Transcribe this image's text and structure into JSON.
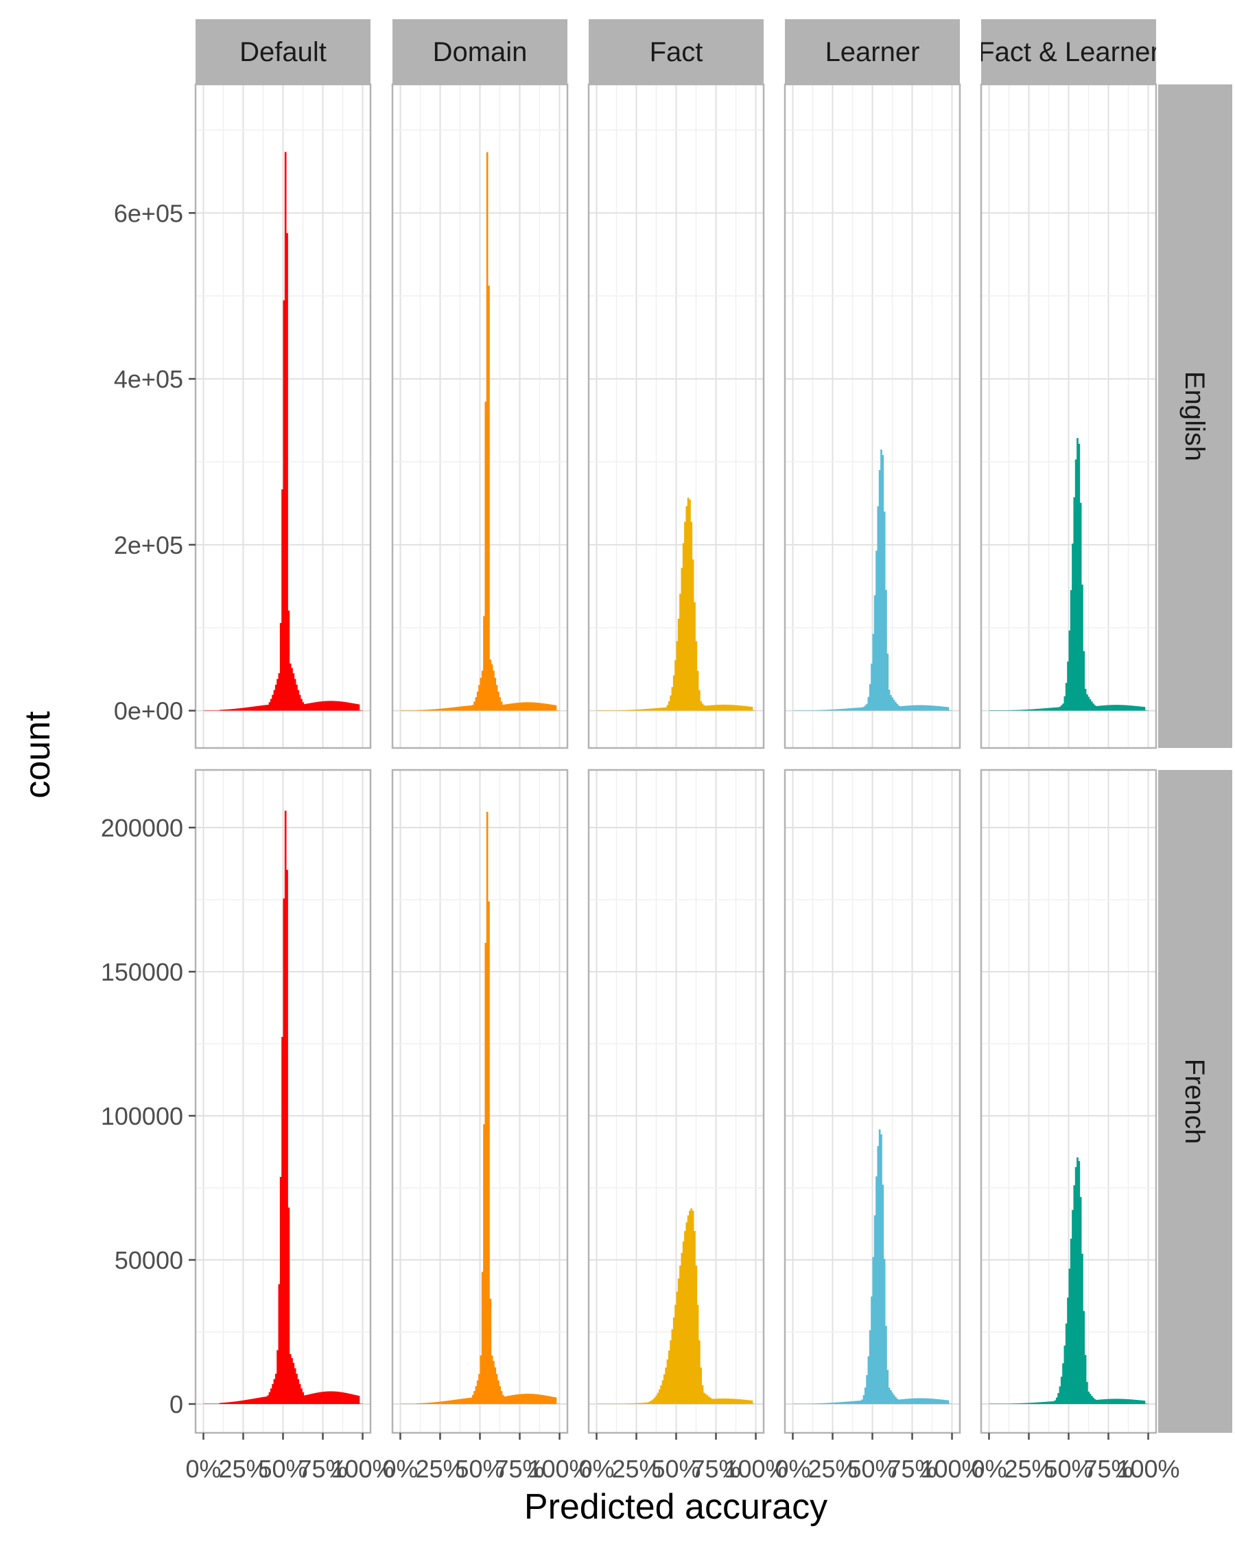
{
  "chart_data": {
    "type": "bar",
    "subtype": "faceted-histogram",
    "xlabel": "Predicted accuracy",
    "ylabel": "count",
    "x_ticks": [
      "0%",
      "25%",
      "50%",
      "75%",
      "100%"
    ],
    "x_range": [
      0,
      1
    ],
    "grid": true,
    "columns": [
      {
        "label": "Default",
        "color": "#ff0000"
      },
      {
        "label": "Domain",
        "color": "#ff8c00"
      },
      {
        "label": "Fact",
        "color": "#f0b000"
      },
      {
        "label": "Learner",
        "color": "#5bbcd6"
      },
      {
        "label": "Fact & Learner",
        "color": "#00a08a"
      }
    ],
    "rows": [
      {
        "label": "English",
        "ylim": [
          -45000,
          755000
        ],
        "y_ticks": [
          0,
          200000,
          400000,
          600000
        ],
        "y_tick_labels": [
          "0e+00",
          "2e+05",
          "4e+05",
          "6e+05"
        ],
        "panels": [
          {
            "column": "Default",
            "peak_x": 0.52,
            "peak_count": 700000,
            "width_left": 0.018,
            "width_right": 0.008,
            "shoulder": 0.055,
            "tail_level": 0.012
          },
          {
            "column": "Domain",
            "peak_x": 0.55,
            "peak_count": 725000,
            "width_left": 0.013,
            "width_right": 0.006,
            "shoulder": 0.045,
            "tail_level": 0.01
          },
          {
            "column": "Fact",
            "peak_x": 0.58,
            "peak_count": 258000,
            "width_left": 0.05,
            "width_right": 0.03,
            "shoulder": 0.06,
            "tail_level": 0.02
          },
          {
            "column": "Learner",
            "peak_x": 0.56,
            "peak_count": 318000,
            "width_left": 0.035,
            "width_right": 0.02,
            "shoulder": 0.06,
            "tail_level": 0.015
          },
          {
            "column": "Fact & Learner",
            "peak_x": 0.56,
            "peak_count": 332000,
            "width_left": 0.035,
            "width_right": 0.02,
            "shoulder": 0.06,
            "tail_level": 0.015
          }
        ]
      },
      {
        "label": "French",
        "ylim": [
          -10000,
          220000
        ],
        "y_ticks": [
          0,
          50000,
          100000,
          150000,
          200000
        ],
        "y_tick_labels": [
          "0",
          "50000",
          "100000",
          "150000",
          "200000"
        ],
        "panels": [
          {
            "column": "Default",
            "peak_x": 0.52,
            "peak_count": 210000,
            "width_left": 0.025,
            "width_right": 0.01,
            "shoulder": 0.06,
            "tail_level": 0.015
          },
          {
            "column": "Domain",
            "peak_x": 0.55,
            "peak_count": 212000,
            "width_left": 0.02,
            "width_right": 0.008,
            "shoulder": 0.05,
            "tail_level": 0.012
          },
          {
            "column": "Fact",
            "peak_x": 0.6,
            "peak_count": 68000,
            "width_left": 0.09,
            "width_right": 0.03,
            "shoulder": 0.08,
            "tail_level": 0.02
          },
          {
            "column": "Learner",
            "peak_x": 0.55,
            "peak_count": 96000,
            "width_left": 0.04,
            "width_right": 0.022,
            "shoulder": 0.06,
            "tail_level": 0.015
          },
          {
            "column": "Fact & Learner",
            "peak_x": 0.56,
            "peak_count": 86000,
            "width_left": 0.05,
            "width_right": 0.025,
            "shoulder": 0.06,
            "tail_level": 0.015
          }
        ]
      }
    ]
  }
}
